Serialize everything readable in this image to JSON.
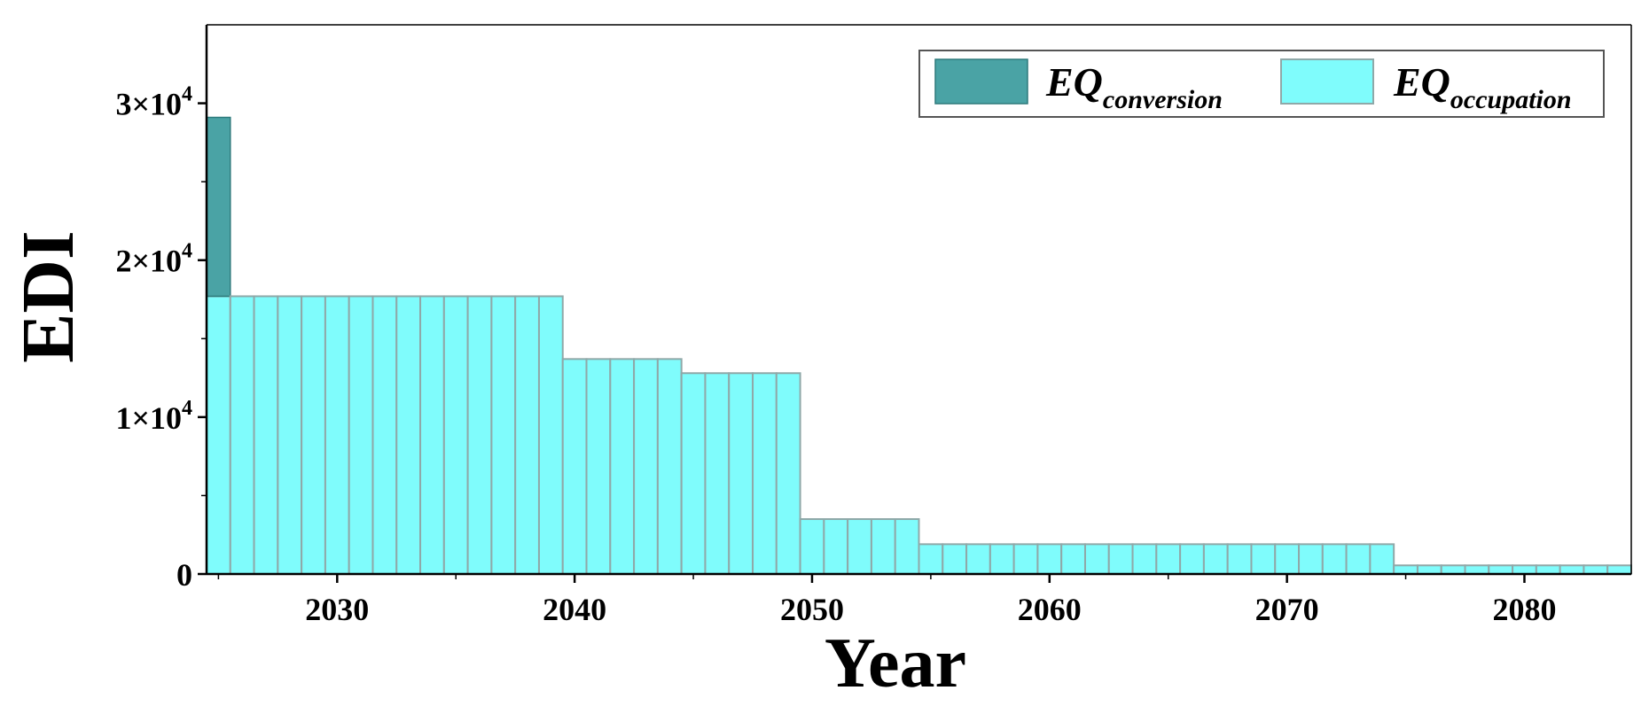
{
  "chart_data": {
    "type": "bar",
    "stacked": true,
    "xlabel": "Year",
    "ylabel": "EDI",
    "xlim": [
      2024.5,
      2084.5
    ],
    "ylim": [
      0,
      35000
    ],
    "x_ticks": [
      {
        "value": 2030,
        "label": "2030"
      },
      {
        "value": 2040,
        "label": "2040"
      },
      {
        "value": 2050,
        "label": "2050"
      },
      {
        "value": 2060,
        "label": "2060"
      },
      {
        "value": 2070,
        "label": "2070"
      },
      {
        "value": 2080,
        "label": "2080"
      }
    ],
    "y_ticks": [
      {
        "value": 0,
        "label": "0",
        "mantissa": "",
        "exponent": ""
      },
      {
        "value": 10000,
        "label": "1×10^4",
        "mantissa": "1×10",
        "exponent": "4"
      },
      {
        "value": 20000,
        "label": "2×10^4",
        "mantissa": "2×10",
        "exponent": "4"
      },
      {
        "value": 30000,
        "label": "3×10^4",
        "mantissa": "3×10",
        "exponent": "4"
      }
    ],
    "legend_position": "top-right",
    "grid": false,
    "x": [
      2025,
      2026,
      2027,
      2028,
      2029,
      2030,
      2031,
      2032,
      2033,
      2034,
      2035,
      2036,
      2037,
      2038,
      2039,
      2040,
      2041,
      2042,
      2043,
      2044,
      2045,
      2046,
      2047,
      2048,
      2049,
      2050,
      2051,
      2052,
      2053,
      2054,
      2055,
      2056,
      2057,
      2058,
      2059,
      2060,
      2061,
      2062,
      2063,
      2064,
      2065,
      2066,
      2067,
      2068,
      2069,
      2070,
      2071,
      2072,
      2073,
      2074,
      2075,
      2076,
      2077,
      2078,
      2079,
      2080,
      2081,
      2082,
      2083,
      2084
    ],
    "series": [
      {
        "name": "EQ",
        "subscript": "occupation",
        "color": "#7ffcfc",
        "values": [
          17700,
          17700,
          17700,
          17700,
          17700,
          17700,
          17700,
          17700,
          17700,
          17700,
          17700,
          17700,
          17700,
          17700,
          17700,
          13700,
          13700,
          13700,
          13700,
          13700,
          12800,
          12800,
          12800,
          12800,
          12800,
          3500,
          3500,
          3500,
          3500,
          3500,
          1900,
          1900,
          1900,
          1900,
          1900,
          1900,
          1900,
          1900,
          1900,
          1900,
          1900,
          1900,
          1900,
          1900,
          1900,
          1900,
          1900,
          1900,
          1900,
          1900,
          550,
          550,
          550,
          550,
          550,
          550,
          550,
          550,
          550,
          550
        ]
      },
      {
        "name": "EQ",
        "subscript": "conversion",
        "color": "#4aa3a5",
        "values": [
          11400,
          0,
          0,
          0,
          0,
          0,
          0,
          0,
          0,
          0,
          0,
          0,
          0,
          0,
          0,
          0,
          0,
          0,
          0,
          0,
          0,
          0,
          0,
          0,
          0,
          0,
          0,
          0,
          0,
          0,
          0,
          0,
          0,
          0,
          0,
          0,
          0,
          0,
          0,
          0,
          0,
          0,
          0,
          0,
          0,
          0,
          0,
          0,
          0,
          0,
          0,
          0,
          0,
          0,
          0,
          0,
          0,
          0,
          0,
          0
        ]
      }
    ]
  }
}
